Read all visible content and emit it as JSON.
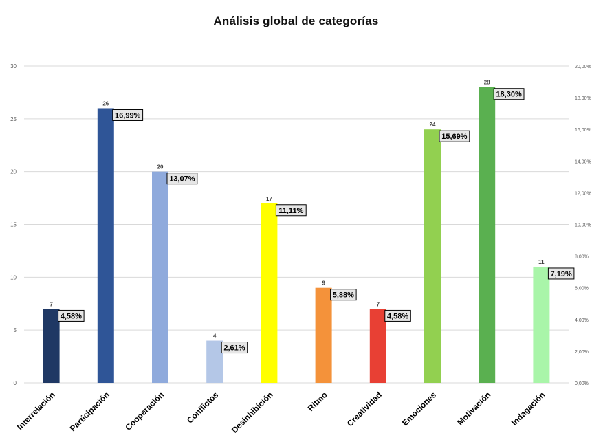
{
  "chart_data": {
    "type": "bar",
    "title": "Análisis global de categorías",
    "categories": [
      "Interrelación",
      "Participación",
      "Cooperación",
      "Conflictos",
      "Desinhibición",
      "Ritmo",
      "Creatividad",
      "Emociones",
      "Motivación",
      "Indagación"
    ],
    "series": [
      {
        "values": [
          7,
          26,
          20,
          4,
          17,
          9,
          7,
          24,
          28,
          11
        ]
      }
    ],
    "percent_labels": [
      "4,58%",
      "16,99%",
      "13,07%",
      "2,61%",
      "11,11%",
      "5,88%",
      "4,58%",
      "15,69%",
      "18,30%",
      "7,19%"
    ],
    "bar_colors": [
      "#1f3864",
      "#2f5597",
      "#8faadc",
      "#b4c7e7",
      "#ffff00",
      "#f4923a",
      "#e84034",
      "#92d050",
      "#5ab050",
      "#a9f5a9"
    ],
    "ylim": [
      0,
      30
    ],
    "y_ticks": [
      "0",
      "5",
      "10",
      "15",
      "20",
      "25",
      "30"
    ],
    "y2lim": [
      0,
      20
    ],
    "y2_ticks": [
      "0,00%",
      "2,00%",
      "4,00%",
      "6,00%",
      "8,00%",
      "10,00%",
      "12,00%",
      "14,00%",
      "16,00%",
      "18,00%",
      "20,00%"
    ],
    "grid": true,
    "legend": "none"
  }
}
